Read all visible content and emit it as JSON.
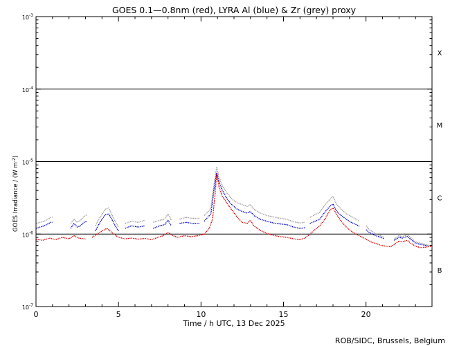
{
  "chart_data": {
    "type": "line",
    "title": "GOES 0.1—0.8nm (red), LYRA Al (blue) & Zr (grey) proxy",
    "xlabel": "Time / h UTC, 13 Dec 2025",
    "ylabel": "GOES Irradiance / (W m",
    "ylabel_exp": "-2",
    "ylabel_close": ")",
    "xlim": [
      0,
      24
    ],
    "ylim": [
      1e-07,
      0.001
    ],
    "yscale": "log",
    "x_ticks": [
      {
        "value": 0,
        "label": "0"
      },
      {
        "value": 5,
        "label": "5"
      },
      {
        "value": 10,
        "label": "10"
      },
      {
        "value": 15,
        "label": "15"
      },
      {
        "value": 20,
        "label": "20"
      }
    ],
    "y_ticks": [
      {
        "value": 1e-07,
        "base": "10",
        "exp": "-7"
      },
      {
        "value": 1e-06,
        "base": "10",
        "exp": "-6"
      },
      {
        "value": 1e-05,
        "base": "10",
        "exp": "-5"
      },
      {
        "value": 0.0001,
        "base": "10",
        "exp": "-4"
      },
      {
        "value": 0.001,
        "base": "10",
        "exp": "-3"
      }
    ],
    "class_lines": [
      1e-06,
      1e-05,
      0.0001
    ],
    "class_labels": [
      {
        "label": "B",
        "value": 3.2e-07
      },
      {
        "label": "C",
        "value": 3.2e-06
      },
      {
        "label": "M",
        "value": 3.2e-05
      },
      {
        "label": "X",
        "value": 0.00032
      }
    ],
    "series": [
      {
        "color": "#999999",
        "segments": [
          [
            [
              0.0,
              1.4e-06
            ],
            [
              0.5,
              1.5e-06
            ],
            [
              0.9,
              1.7e-06
            ],
            [
              1.0,
              1.7e-06
            ]
          ],
          [
            [
              2.1,
              1.4e-06
            ],
            [
              2.3,
              1.6e-06
            ],
            [
              2.5,
              1.45e-06
            ],
            [
              2.7,
              1.55e-06
            ],
            [
              2.9,
              1.75e-06
            ],
            [
              3.1,
              1.85e-06
            ]
          ],
          [
            [
              3.6,
              1.3e-06
            ],
            [
              3.8,
              1.6e-06
            ],
            [
              4.0,
              1.85e-06
            ],
            [
              4.2,
              2.2e-06
            ],
            [
              4.4,
              2.3e-06
            ],
            [
              4.6,
              1.85e-06
            ],
            [
              4.8,
              1.5e-06
            ],
            [
              5.0,
              1.25e-06
            ]
          ],
          [
            [
              5.4,
              1.4e-06
            ],
            [
              5.8,
              1.5e-06
            ],
            [
              6.2,
              1.45e-06
            ],
            [
              6.6,
              1.55e-06
            ]
          ],
          [
            [
              7.1,
              1.45e-06
            ],
            [
              7.5,
              1.55e-06
            ],
            [
              7.8,
              1.6e-06
            ],
            [
              8.0,
              1.9e-06
            ],
            [
              8.2,
              1.55e-06
            ]
          ],
          [
            [
              8.7,
              1.6e-06
            ],
            [
              9.1,
              1.7e-06
            ],
            [
              9.5,
              1.65e-06
            ],
            [
              9.9,
              1.65e-06
            ]
          ],
          [
            [
              10.2,
              1.8e-06
            ],
            [
              10.4,
              2e-06
            ],
            [
              10.6,
              2.3e-06
            ],
            [
              10.8,
              5e-06
            ],
            [
              10.95,
              8.4e-06
            ],
            [
              11.1,
              6e-06
            ],
            [
              11.3,
              4.6e-06
            ],
            [
              11.6,
              3.6e-06
            ],
            [
              11.9,
              3e-06
            ],
            [
              12.2,
              2.7e-06
            ],
            [
              12.5,
              2.55e-06
            ],
            [
              12.8,
              2.4e-06
            ],
            [
              13.0,
              2.55e-06
            ],
            [
              13.2,
              2.2e-06
            ],
            [
              13.6,
              1.95e-06
            ],
            [
              14.0,
              1.8e-06
            ],
            [
              14.4,
              1.72e-06
            ],
            [
              14.8,
              1.65e-06
            ],
            [
              15.2,
              1.6e-06
            ],
            [
              15.6,
              1.48e-06
            ],
            [
              16.0,
              1.42e-06
            ],
            [
              16.3,
              1.45e-06
            ]
          ],
          [
            [
              16.6,
              1.7e-06
            ],
            [
              16.9,
              1.85e-06
            ],
            [
              17.2,
              2e-06
            ],
            [
              17.5,
              2.5e-06
            ],
            [
              17.8,
              3e-06
            ],
            [
              18.0,
              3.3e-06
            ],
            [
              18.2,
              2.6e-06
            ],
            [
              18.5,
              2.2e-06
            ],
            [
              18.8,
              1.9e-06
            ],
            [
              19.1,
              1.75e-06
            ],
            [
              19.4,
              1.6e-06
            ],
            [
              19.6,
              1.5e-06
            ]
          ],
          [
            [
              20.0,
              1.3e-06
            ],
            [
              20.2,
              1.15e-06
            ],
            [
              20.4,
              1.08e-06
            ],
            [
              20.6,
              1e-06
            ],
            [
              20.9,
              9.5e-07
            ],
            [
              21.1,
              9e-07
            ]
          ],
          [
            [
              21.7,
              8.5e-07
            ],
            [
              22.0,
              9.5e-07
            ],
            [
              22.2,
              9.2e-07
            ],
            [
              22.5,
              9.8e-07
            ],
            [
              22.7,
              9e-07
            ],
            [
              23.0,
              7.8e-07
            ],
            [
              23.3,
              7.5e-07
            ],
            [
              23.6,
              7.2e-07
            ],
            [
              23.8,
              7e-07
            ]
          ]
        ]
      },
      {
        "color": "#0000cc",
        "segments": [
          [
            [
              0.0,
              1.2e-06
            ],
            [
              0.5,
              1.3e-06
            ],
            [
              0.9,
              1.45e-06
            ],
            [
              1.0,
              1.45e-06
            ]
          ],
          [
            [
              2.1,
              1.2e-06
            ],
            [
              2.3,
              1.4e-06
            ],
            [
              2.5,
              1.25e-06
            ],
            [
              2.7,
              1.3e-06
            ],
            [
              2.9,
              1.45e-06
            ],
            [
              3.1,
              1.5e-06
            ]
          ],
          [
            [
              3.6,
              1.1e-06
            ],
            [
              3.8,
              1.35e-06
            ],
            [
              4.0,
              1.6e-06
            ],
            [
              4.2,
              1.85e-06
            ],
            [
              4.4,
              1.9e-06
            ],
            [
              4.6,
              1.6e-06
            ],
            [
              4.8,
              1.3e-06
            ],
            [
              5.0,
              1.1e-06
            ]
          ],
          [
            [
              5.4,
              1.2e-06
            ],
            [
              5.8,
              1.3e-06
            ],
            [
              6.2,
              1.25e-06
            ],
            [
              6.6,
              1.3e-06
            ]
          ],
          [
            [
              7.1,
              1.2e-06
            ],
            [
              7.5,
              1.3e-06
            ],
            [
              7.8,
              1.35e-06
            ],
            [
              8.0,
              1.55e-06
            ],
            [
              8.2,
              1.3e-06
            ]
          ],
          [
            [
              8.7,
              1.4e-06
            ],
            [
              9.1,
              1.45e-06
            ],
            [
              9.5,
              1.4e-06
            ],
            [
              9.9,
              1.4e-06
            ]
          ],
          [
            [
              10.2,
              1.5e-06
            ],
            [
              10.4,
              1.7e-06
            ],
            [
              10.6,
              1.9e-06
            ],
            [
              10.8,
              4.3e-06
            ],
            [
              10.95,
              7e-06
            ],
            [
              11.1,
              5.2e-06
            ],
            [
              11.3,
              4e-06
            ],
            [
              11.6,
              3e-06
            ],
            [
              11.9,
              2.5e-06
            ],
            [
              12.2,
              2.2e-06
            ],
            [
              12.5,
              2.05e-06
            ],
            [
              12.8,
              1.95e-06
            ],
            [
              13.0,
              2.05e-06
            ],
            [
              13.2,
              1.8e-06
            ],
            [
              13.6,
              1.6e-06
            ],
            [
              14.0,
              1.5e-06
            ],
            [
              14.4,
              1.42e-06
            ],
            [
              14.8,
              1.38e-06
            ],
            [
              15.2,
              1.35e-06
            ],
            [
              15.6,
              1.25e-06
            ],
            [
              16.0,
              1.2e-06
            ],
            [
              16.3,
              1.22e-06
            ]
          ],
          [
            [
              16.6,
              1.4e-06
            ],
            [
              16.9,
              1.5e-06
            ],
            [
              17.2,
              1.6e-06
            ],
            [
              17.5,
              2e-06
            ],
            [
              17.8,
              2.4e-06
            ],
            [
              18.0,
              2.6e-06
            ],
            [
              18.2,
              2.1e-06
            ],
            [
              18.5,
              1.8e-06
            ],
            [
              18.8,
              1.6e-06
            ],
            [
              19.1,
              1.45e-06
            ],
            [
              19.4,
              1.35e-06
            ],
            [
              19.6,
              1.28e-06
            ]
          ],
          [
            [
              20.0,
              1.15e-06
            ],
            [
              20.2,
              1.05e-06
            ],
            [
              20.4,
              1e-06
            ],
            [
              20.6,
              9.5e-07
            ],
            [
              20.9,
              9e-07
            ],
            [
              21.1,
              8.6e-07
            ]
          ],
          [
            [
              21.7,
              8.2e-07
            ],
            [
              22.0,
              9e-07
            ],
            [
              22.2,
              8.8e-07
            ],
            [
              22.5,
              9.3e-07
            ],
            [
              22.7,
              8.5e-07
            ],
            [
              23.0,
              7.5e-07
            ],
            [
              23.3,
              7.2e-07
            ],
            [
              23.6,
              7e-07
            ],
            [
              23.8,
              6.8e-07
            ]
          ]
        ]
      },
      {
        "color": "#dd0000",
        "segments": [
          [
            [
              0.0,
              8.5e-07
            ],
            [
              0.4,
              8.2e-07
            ],
            [
              0.8,
              8.8e-07
            ],
            [
              1.2,
              8.4e-07
            ],
            [
              1.6,
              9e-07
            ],
            [
              2.0,
              8.6e-07
            ],
            [
              2.3,
              9.5e-07
            ],
            [
              2.6,
              8.8e-07
            ],
            [
              3.0,
              8.5e-07
            ]
          ],
          [
            [
              3.4,
              9e-07
            ],
            [
              3.7,
              1e-06
            ],
            [
              4.0,
              1.1e-06
            ],
            [
              4.3,
              1.2e-06
            ],
            [
              4.6,
              1.05e-06
            ],
            [
              5.0,
              9e-07
            ],
            [
              5.4,
              8.6e-07
            ],
            [
              5.8,
              8.8e-07
            ],
            [
              6.2,
              8.5e-07
            ],
            [
              6.6,
              8.7e-07
            ],
            [
              7.0,
              8.4e-07
            ],
            [
              7.4,
              9e-07
            ],
            [
              7.7,
              9.5e-07
            ],
            [
              8.0,
              1.05e-06
            ],
            [
              8.3,
              9.5e-07
            ],
            [
              8.6,
              9e-07
            ],
            [
              9.0,
              9.5e-07
            ],
            [
              9.4,
              9.2e-07
            ],
            [
              9.8,
              9.5e-07
            ],
            [
              10.2,
              1e-06
            ],
            [
              10.5,
              1.2e-06
            ],
            [
              10.7,
              1.6e-06
            ],
            [
              10.85,
              3.5e-06
            ],
            [
              10.95,
              6.8e-06
            ],
            [
              11.1,
              4.4e-06
            ],
            [
              11.3,
              3.3e-06
            ],
            [
              11.6,
              2.6e-06
            ],
            [
              11.9,
              2.1e-06
            ],
            [
              12.2,
              1.7e-06
            ],
            [
              12.5,
              1.45e-06
            ],
            [
              12.8,
              1.4e-06
            ],
            [
              13.0,
              1.55e-06
            ],
            [
              13.2,
              1.3e-06
            ],
            [
              13.6,
              1.12e-06
            ],
            [
              14.0,
              1.02e-06
            ],
            [
              14.4,
              9.6e-07
            ],
            [
              14.8,
              9.2e-07
            ],
            [
              15.2,
              9e-07
            ],
            [
              15.6,
              8.6e-07
            ],
            [
              16.0,
              8.4e-07
            ],
            [
              16.3,
              8.8e-07
            ],
            [
              16.6,
              1e-06
            ],
            [
              16.9,
              1.15e-06
            ],
            [
              17.2,
              1.3e-06
            ],
            [
              17.5,
              1.6e-06
            ],
            [
              17.8,
              2.1e-06
            ],
            [
              18.0,
              2.3e-06
            ],
            [
              18.2,
              1.9e-06
            ],
            [
              18.5,
              1.5e-06
            ],
            [
              18.8,
              1.25e-06
            ],
            [
              19.1,
              1.1e-06
            ],
            [
              19.4,
              1e-06
            ],
            [
              19.7,
              9.2e-07
            ],
            [
              20.0,
              8.5e-07
            ],
            [
              20.3,
              7.8e-07
            ],
            [
              20.6,
              7.4e-07
            ],
            [
              20.9,
              7e-07
            ],
            [
              21.2,
              6.8e-07
            ],
            [
              21.5,
              6.7e-07
            ],
            [
              21.7,
              7.2e-07
            ],
            [
              22.0,
              8e-07
            ],
            [
              22.2,
              7.8e-07
            ],
            [
              22.5,
              8.2e-07
            ],
            [
              22.7,
              7.5e-07
            ],
            [
              23.0,
              6.8e-07
            ],
            [
              23.3,
              6.5e-07
            ],
            [
              23.6,
              6.6e-07
            ],
            [
              24.0,
              6.8e-07
            ]
          ]
        ]
      }
    ]
  },
  "footer": {
    "credit": "ROB/SIDC, Brussels, Belgium"
  }
}
